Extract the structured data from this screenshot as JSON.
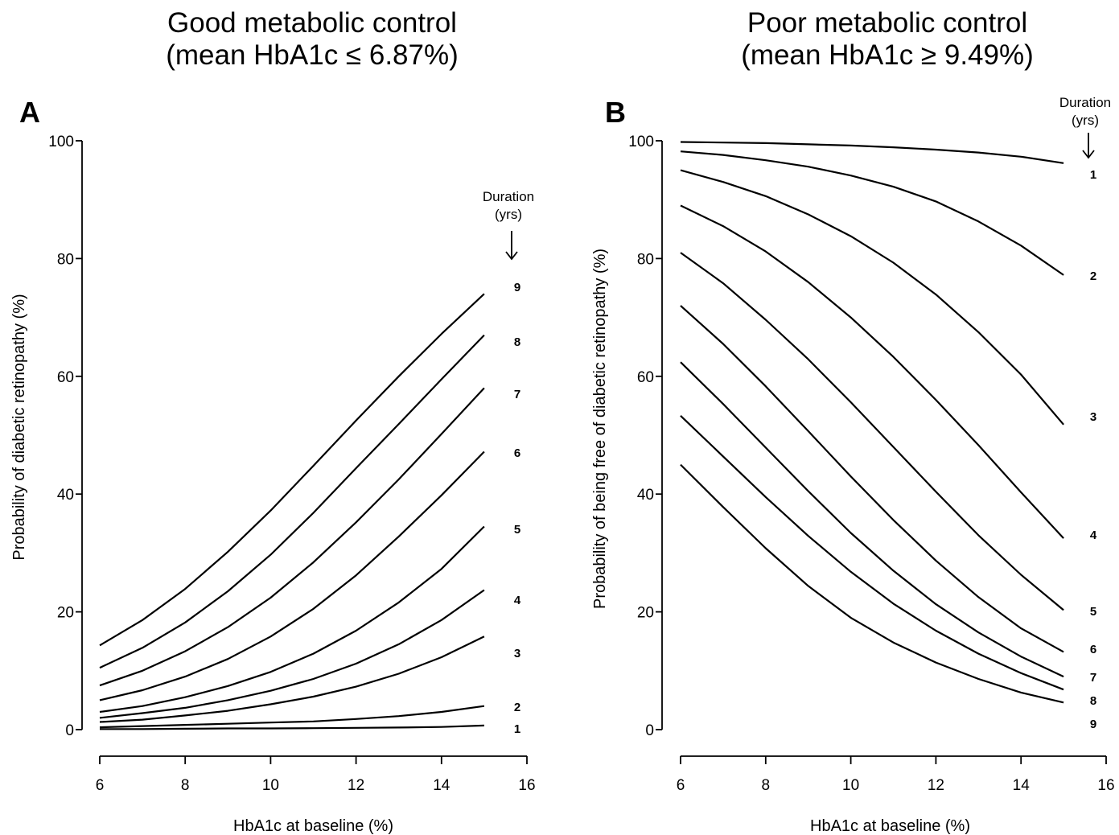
{
  "panels": [
    {
      "title_line1": "Good metabolic control",
      "title_line2": "(mean HbA1c ≤ 6.87%)",
      "label": "A",
      "duration_header_1": "Duration",
      "duration_header_2": "(yrs)"
    },
    {
      "title_line1": "Poor metabolic control",
      "title_line2": "(mean HbA1c ≥ 9.49%)",
      "label": "B",
      "duration_header_1": "Duration",
      "duration_header_2": "(yrs)"
    }
  ],
  "chart_data": [
    {
      "type": "line",
      "xlabel": "HbA1c at baseline (%)",
      "ylabel": "Probability of diabetic retinopathy (%)",
      "xlim": [
        6,
        16
      ],
      "ylim": [
        0,
        100
      ],
      "xticks": [
        "6",
        "8",
        "10",
        "12",
        "14",
        "16"
      ],
      "yticks": [
        "0",
        "20",
        "40",
        "60",
        "80",
        "100"
      ],
      "x": [
        6,
        7,
        8,
        9,
        10,
        11,
        12,
        13,
        14,
        15
      ],
      "series": [
        {
          "name": "1",
          "values": [
            0.1,
            0.1,
            0.15,
            0.2,
            0.2,
            0.25,
            0.3,
            0.35,
            0.45,
            0.7
          ]
        },
        {
          "name": "2",
          "values": [
            0.4,
            0.6,
            0.8,
            1.0,
            1.2,
            1.4,
            1.8,
            2.3,
            3.0,
            4.0
          ]
        },
        {
          "name": "3",
          "values": [
            1.3,
            1.7,
            2.4,
            3.2,
            4.3,
            5.6,
            7.3,
            9.5,
            12.3,
            15.8
          ]
        },
        {
          "name": "4",
          "values": [
            2.0,
            2.8,
            3.7,
            5.0,
            6.6,
            8.6,
            11.2,
            14.5,
            18.6,
            23.7
          ]
        },
        {
          "name": "5",
          "values": [
            3.0,
            4.0,
            5.5,
            7.4,
            9.8,
            12.9,
            16.8,
            21.6,
            27.3,
            34.5
          ]
        },
        {
          "name": "6",
          "values": [
            5.0,
            6.7,
            9.0,
            12.0,
            15.8,
            20.5,
            26.2,
            32.8,
            39.8,
            47.2
          ]
        },
        {
          "name": "7",
          "values": [
            7.5,
            10.0,
            13.3,
            17.4,
            22.4,
            28.4,
            35.2,
            42.5,
            50.2,
            58.0
          ]
        },
        {
          "name": "8",
          "values": [
            10.5,
            13.9,
            18.2,
            23.5,
            29.7,
            36.8,
            44.4,
            51.9,
            59.5,
            67.0
          ]
        },
        {
          "name": "9",
          "values": [
            14.3,
            18.6,
            23.9,
            30.2,
            37.2,
            44.8,
            52.5,
            60.0,
            67.2,
            74.0
          ]
        }
      ]
    },
    {
      "type": "line",
      "xlabel": "HbA1c at baseline (%)",
      "ylabel": "Probability of being free of diabetic retinopathy (%)",
      "xlim": [
        6,
        16
      ],
      "ylim": [
        0,
        100
      ],
      "xticks": [
        "6",
        "8",
        "10",
        "12",
        "14",
        "16"
      ],
      "yticks": [
        "0",
        "20",
        "40",
        "60",
        "80",
        "100"
      ],
      "x": [
        6,
        7,
        8,
        9,
        10,
        11,
        12,
        13,
        14,
        15
      ],
      "series": [
        {
          "name": "1",
          "values": [
            99.8,
            99.7,
            99.6,
            99.4,
            99.2,
            98.9,
            98.5,
            98.0,
            97.3,
            96.2
          ]
        },
        {
          "name": "2",
          "values": [
            98.2,
            97.6,
            96.7,
            95.6,
            94.1,
            92.2,
            89.7,
            86.3,
            82.2,
            77.2
          ]
        },
        {
          "name": "3",
          "values": [
            95.0,
            93.0,
            90.6,
            87.5,
            83.8,
            79.3,
            73.9,
            67.5,
            60.3,
            51.8
          ]
        },
        {
          "name": "4",
          "values": [
            89.0,
            85.5,
            81.2,
            76.0,
            70.0,
            63.3,
            56.0,
            48.3,
            40.3,
            32.5
          ]
        },
        {
          "name": "5",
          "values": [
            81.0,
            75.8,
            69.6,
            62.9,
            55.6,
            48.0,
            40.4,
            33.0,
            26.3,
            20.3
          ]
        },
        {
          "name": "6",
          "values": [
            72.0,
            65.5,
            58.3,
            50.7,
            43.0,
            35.6,
            28.7,
            22.5,
            17.2,
            13.2
          ]
        },
        {
          "name": "7",
          "values": [
            62.4,
            55.3,
            47.9,
            40.5,
            33.4,
            27.0,
            21.3,
            16.5,
            12.4,
            9.0
          ]
        },
        {
          "name": "8",
          "values": [
            53.3,
            46.4,
            39.5,
            32.9,
            26.8,
            21.4,
            16.8,
            12.9,
            9.6,
            6.8
          ]
        },
        {
          "name": "9",
          "values": [
            45.0,
            37.8,
            30.8,
            24.4,
            19.0,
            14.8,
            11.4,
            8.6,
            6.3,
            4.6
          ]
        }
      ]
    }
  ]
}
